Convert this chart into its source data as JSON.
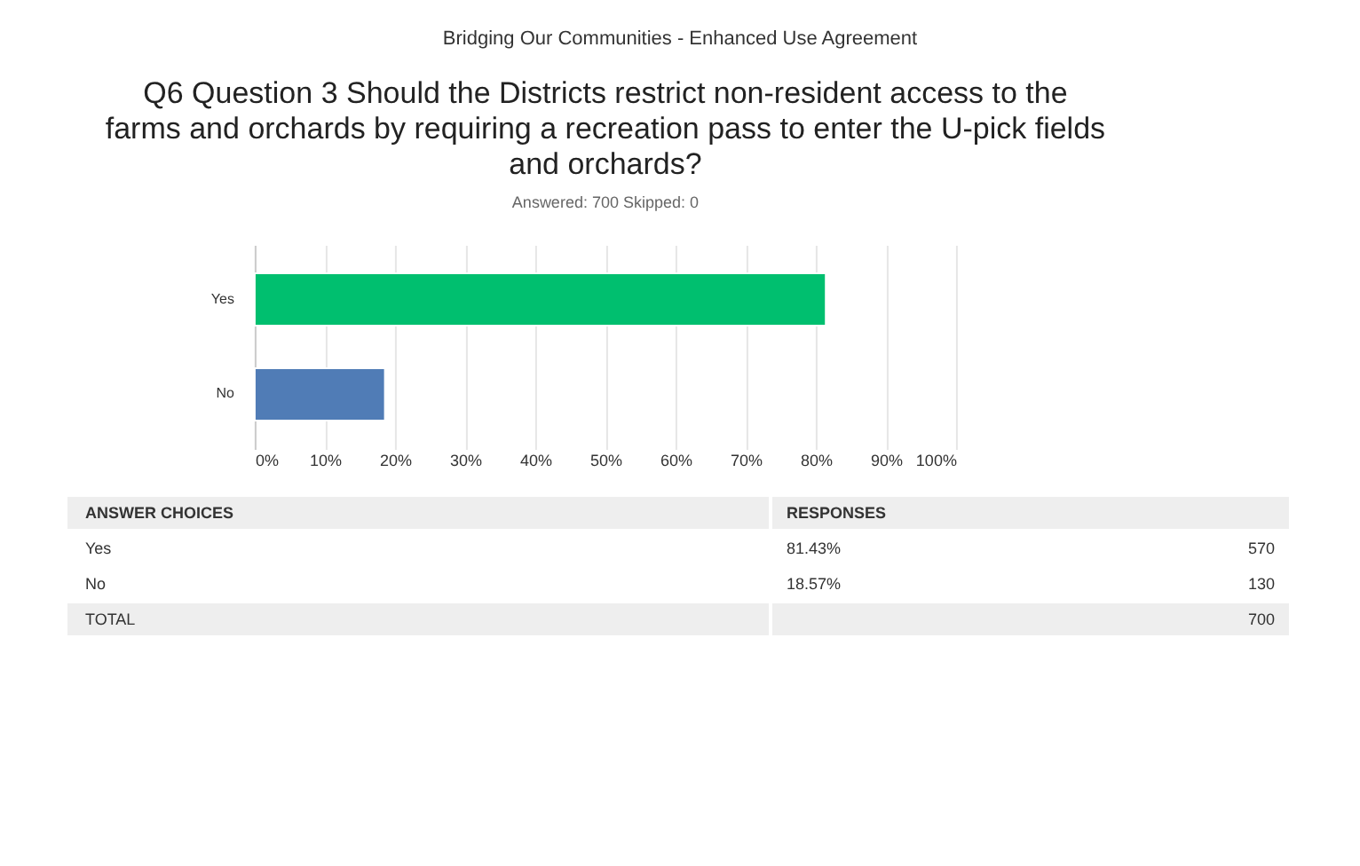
{
  "chart_data": {
    "type": "bar",
    "orientation": "horizontal",
    "title": "Q6 Question 3  Should the Districts restrict non-resident access to the\nfarms and orchards by requiring a recreation pass to enter the U-pick fields\nand orchards?",
    "subtitle": "Answered: 700    Skipped: 0",
    "categories": [
      "Yes",
      "No"
    ],
    "values": [
      81.43,
      18.57
    ],
    "colors": [
      "#00bf6f",
      "#507cb6"
    ],
    "xlim": [
      0,
      100
    ],
    "xticks": [
      {
        "value": 0,
        "label": "0%"
      },
      {
        "value": 10,
        "label": "10%"
      },
      {
        "value": 20,
        "label": "20%"
      },
      {
        "value": 30,
        "label": "30%"
      },
      {
        "value": 40,
        "label": "40%"
      },
      {
        "value": 50,
        "label": "50%"
      },
      {
        "value": 60,
        "label": "60%"
      },
      {
        "value": 70,
        "label": "70%"
      },
      {
        "value": 80,
        "label": "80%"
      },
      {
        "value": 90,
        "label": "90%"
      },
      {
        "value": 100,
        "label": "100%"
      }
    ],
    "grid": "x",
    "annotations": [
      "Bridging Our Communities - Enhanced Use Agreement",
      "ANSWER CHOICES",
      "RESPONSES",
      "81.43%",
      "570",
      "18.57%",
      "130",
      "TOTAL",
      "700"
    ]
  }
}
